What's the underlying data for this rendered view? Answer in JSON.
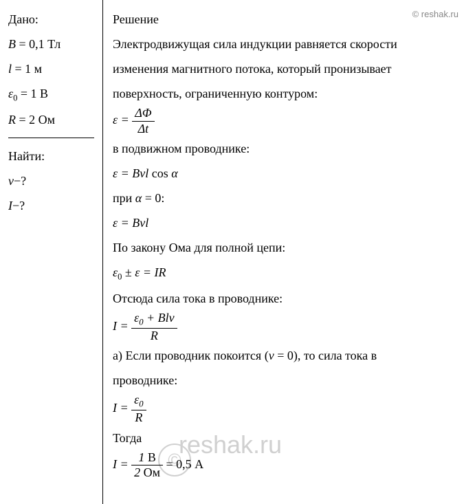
{
  "watermark": "© reshak.ru",
  "watermark_big": "reshak.ru",
  "watermark_c": "©",
  "given": {
    "title": "Дано:",
    "items": [
      {
        "var": "B",
        "eq": " = 0,1 Тл"
      },
      {
        "var": "l",
        "eq": " = 1 м"
      },
      {
        "var": "ε",
        "sub": "0",
        "eq": " = 1 В"
      },
      {
        "var": "R",
        "eq": " = 2 Ом"
      }
    ]
  },
  "find": {
    "title": "Найти:",
    "items": [
      {
        "var": "v",
        "eq": "−?"
      },
      {
        "var": "I",
        "eq": "−?"
      }
    ]
  },
  "solution": {
    "title": "Решение",
    "p1": "Электродвижущая сила индукции равняется скорости",
    "p2": "изменения магнитного потока, который пронизывает",
    "p3": "поверхность, ограниченную контуром:",
    "f1_lhs": "ε = ",
    "f1_num": "ΔΦ",
    "f1_den": "Δt",
    "p4": "в подвижном проводнике:",
    "f2": "ε = Bvl",
    "f2_cos": " cos ",
    "f2_alpha": "α",
    "p5a": "при ",
    "p5b": "α",
    "p5c": " = 0:",
    "f3": "ε = Bvl",
    "p6": "По закону Ома для полной цепи:",
    "f4a": "ε",
    "f4a_sub": "0",
    "f4b": " ± ",
    "f4c": "ε = IR",
    "p7": "Отсюда сила тока в проводнике:",
    "f5_lhs": "I = ",
    "f5_num_a": "ε",
    "f5_num_sub": "0",
    "f5_num_b": " + Blv",
    "f5_den": "R",
    "p8a": "а) Если проводник покоится (",
    "p8b": "v",
    "p8c": " = 0), то сила тока в",
    "p9": "проводнике:",
    "f6_lhs": "I = ",
    "f6_num": "ε",
    "f6_num_sub": "0",
    "f6_den": "R",
    "p10": "Тогда",
    "f7_lhs": "I = ",
    "f7_num_val": "1 ",
    "f7_num_unit": "В",
    "f7_den_val": "2 ",
    "f7_den_unit": "Ом",
    "f7_result": " = 0,5 А"
  },
  "colors": {
    "text": "#000000",
    "background": "#ffffff",
    "watermark": "#888888",
    "watermark_big": "#d0d0d0",
    "border": "#000000"
  }
}
